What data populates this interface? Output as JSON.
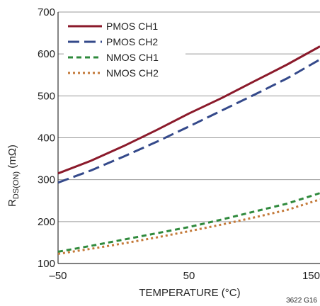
{
  "chart_data": {
    "type": "line",
    "title": "",
    "xlabel": "TEMPERATURE (°C)",
    "ylabel_main": "R",
    "ylabel_sub": "DS(ON)",
    "ylabel_unit": " (mΩ)",
    "xlim": [
      -50,
      150
    ],
    "ylim": [
      100,
      700
    ],
    "x_ticks": [
      -50,
      50,
      150
    ],
    "x_tick_labels": [
      "–50",
      "50",
      "150"
    ],
    "y_ticks": [
      100,
      200,
      300,
      400,
      500,
      600,
      700
    ],
    "y_tick_labels": [
      "100",
      "200",
      "300",
      "400",
      "500",
      "600",
      "700"
    ],
    "grid": "horizontal",
    "legend_position": "top-left",
    "figure_id": "3622 G16",
    "series": [
      {
        "name": "PMOS CH1",
        "color": "#8b1a2b",
        "dash": "solid",
        "x": [
          -50,
          -25,
          0,
          25,
          50,
          75,
          100,
          125,
          150
        ],
        "y": [
          315,
          345,
          380,
          418,
          458,
          495,
          535,
          575,
          618
        ]
      },
      {
        "name": "PMOS CH2",
        "color": "#34498a",
        "dash": "long-dash",
        "x": [
          -50,
          -25,
          0,
          25,
          50,
          75,
          100,
          125,
          150
        ],
        "y": [
          293,
          322,
          355,
          390,
          427,
          465,
          503,
          542,
          587
        ]
      },
      {
        "name": "NMOS CH1",
        "color": "#2f8a3c",
        "dash": "dash",
        "x": [
          -50,
          -25,
          0,
          25,
          50,
          75,
          100,
          125,
          150
        ],
        "y": [
          128,
          142,
          157,
          172,
          187,
          205,
          224,
          243,
          268
        ]
      },
      {
        "name": "NMOS CH2",
        "color": "#c47a3a",
        "dash": "dot",
        "x": [
          -50,
          -25,
          0,
          25,
          50,
          75,
          100,
          125,
          150
        ],
        "y": [
          123,
          135,
          148,
          162,
          177,
          193,
          210,
          228,
          253
        ]
      }
    ]
  }
}
